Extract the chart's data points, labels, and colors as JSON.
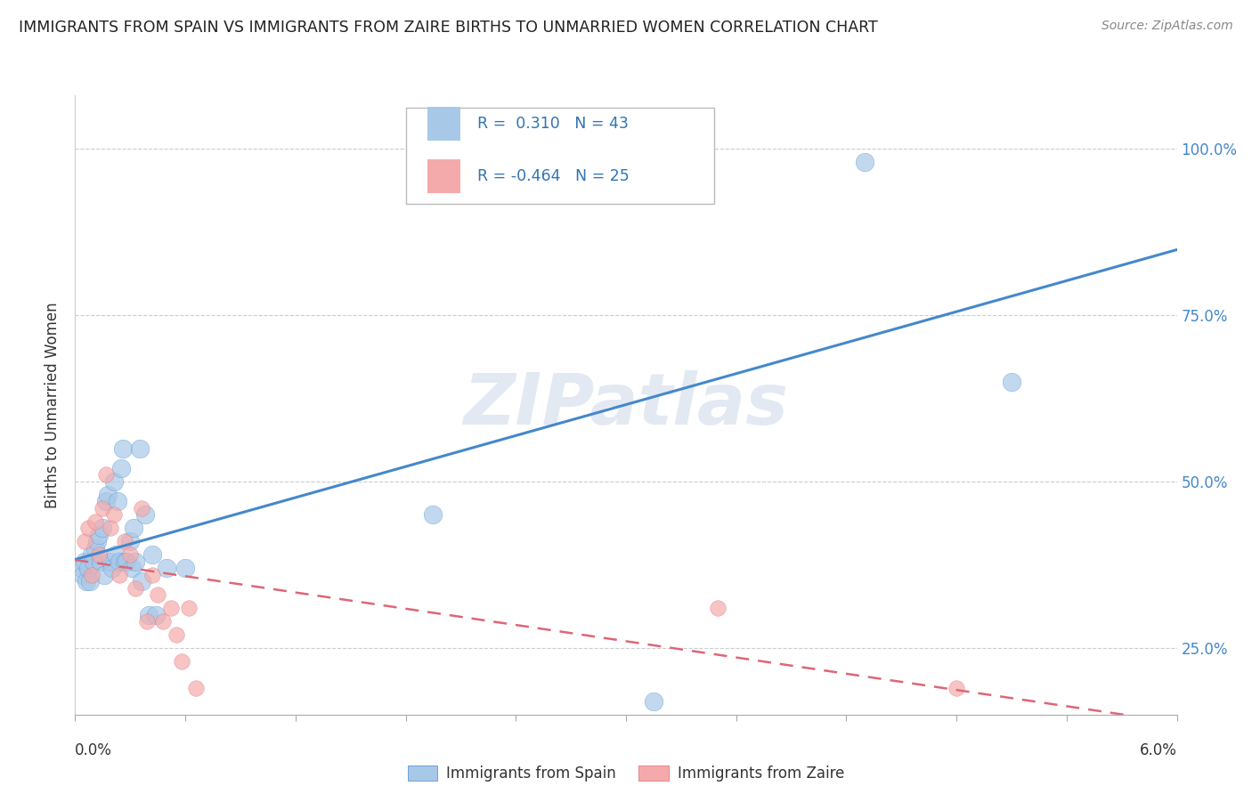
{
  "title": "IMMIGRANTS FROM SPAIN VS IMMIGRANTS FROM ZAIRE BIRTHS TO UNMARRIED WOMEN CORRELATION CHART",
  "source": "Source: ZipAtlas.com",
  "ylabel": "Births to Unmarried Women",
  "y_ticks": [
    0.25,
    0.5,
    0.75,
    1.0
  ],
  "y_tick_labels": [
    "25.0%",
    "50.0%",
    "75.0%",
    "100.0%"
  ],
  "xlim": [
    0.0,
    0.06
  ],
  "ylim": [
    0.15,
    1.08
  ],
  "watermark": "ZIPatlas",
  "spain_color": "#a8c8e8",
  "zaire_color": "#f4aaaa",
  "spain_line_color": "#4488cc",
  "zaire_line_color": "#dd6677",
  "R_spain": 0.31,
  "N_spain": 43,
  "R_zaire": -0.464,
  "N_zaire": 25,
  "legend_text_color": "#3174b5",
  "spain_x": [
    0.0003,
    0.0004,
    0.0005,
    0.0006,
    0.0007,
    0.0008,
    0.0009,
    0.001,
    0.0011,
    0.0012,
    0.0013,
    0.0014,
    0.0015,
    0.0016,
    0.0017,
    0.0018,
    0.0019,
    0.002,
    0.0021,
    0.0022,
    0.0023,
    0.0024,
    0.0025,
    0.0026,
    0.0027,
    0.0028,
    0.003,
    0.0031,
    0.0032,
    0.0033,
    0.0035,
    0.0036,
    0.0038,
    0.004,
    0.0042,
    0.0044,
    0.005,
    0.006,
    0.0195,
    0.0315,
    0.034,
    0.043,
    0.051
  ],
  "spain_y": [
    0.37,
    0.36,
    0.38,
    0.35,
    0.37,
    0.35,
    0.39,
    0.38,
    0.4,
    0.41,
    0.42,
    0.38,
    0.43,
    0.36,
    0.47,
    0.48,
    0.38,
    0.37,
    0.5,
    0.39,
    0.47,
    0.38,
    0.52,
    0.55,
    0.38,
    0.38,
    0.41,
    0.37,
    0.43,
    0.38,
    0.55,
    0.35,
    0.45,
    0.3,
    0.39,
    0.3,
    0.37,
    0.37,
    0.45,
    0.17,
    0.99,
    0.98,
    0.65
  ],
  "zaire_x": [
    0.0005,
    0.0007,
    0.0009,
    0.0011,
    0.0013,
    0.0015,
    0.0017,
    0.0019,
    0.0021,
    0.0024,
    0.0027,
    0.003,
    0.0033,
    0.0036,
    0.0039,
    0.0042,
    0.0045,
    0.0048,
    0.0052,
    0.0055,
    0.0058,
    0.0062,
    0.0066,
    0.035,
    0.048
  ],
  "zaire_y": [
    0.41,
    0.43,
    0.36,
    0.44,
    0.39,
    0.46,
    0.51,
    0.43,
    0.45,
    0.36,
    0.41,
    0.39,
    0.34,
    0.46,
    0.29,
    0.36,
    0.33,
    0.29,
    0.31,
    0.27,
    0.23,
    0.31,
    0.19,
    0.31,
    0.19
  ]
}
